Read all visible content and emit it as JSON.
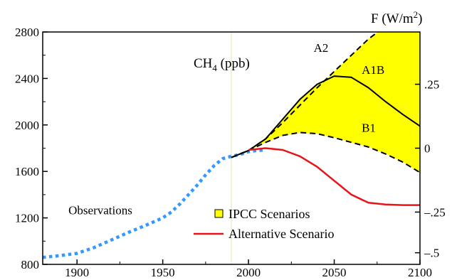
{
  "chart_data": {
    "type": "line",
    "title": "CH",
    "title_sub": "4",
    "title_unit": " (ppb)",
    "right_axis_title": "F (W/m",
    "right_axis_title_sup": "2",
    "right_axis_title_end": ")",
    "xlim": [
      1880,
      2100
    ],
    "ylim": [
      800,
      2800
    ],
    "x_ticks": [
      "1900",
      "1950",
      "2000",
      "2050",
      "2100"
    ],
    "x_tick_values": [
      1900,
      1950,
      2000,
      2050,
      2100
    ],
    "y_ticks": [
      "800",
      "1200",
      "1600",
      "2000",
      "2400",
      "2800"
    ],
    "y_tick_values": [
      800,
      1200,
      1600,
      2000,
      2400,
      2800
    ],
    "right_ticks": [
      {
        "label": ".25",
        "ch4": 2350
      },
      {
        "label": "0",
        "ch4": 1800
      },
      {
        "label": "-.25",
        "ch4": 1250
      },
      {
        "label": "-.5",
        "ch4": 900
      }
    ],
    "colors": {
      "observations": "#3399ff",
      "alternative": "#e8141a",
      "ipcc_fill": "#ffff00",
      "ipcc_lines": "#000000"
    },
    "series": [
      {
        "name": "Observations",
        "style": "dotted",
        "x": [
          1880,
          1890,
          1900,
          1910,
          1920,
          1930,
          1940,
          1950,
          1955,
          1960,
          1965,
          1970,
          1975,
          1980,
          1985,
          1990,
          1995,
          2000,
          2005,
          2010
        ],
        "y": [
          860,
          875,
          895,
          945,
          1010,
          1075,
          1135,
          1200,
          1250,
          1320,
          1400,
          1480,
          1570,
          1650,
          1710,
          1730,
          1745,
          1770,
          1780,
          1785
        ]
      },
      {
        "name": "A2",
        "style": "dashed",
        "x": [
          1990,
          2000,
          2010,
          2020,
          2030,
          2040,
          2050,
          2060,
          2070,
          2080
        ],
        "y": [
          1720,
          1780,
          1880,
          2020,
          2170,
          2320,
          2460,
          2600,
          2740,
          2850
        ]
      },
      {
        "name": "A1B",
        "style": "solid",
        "x": [
          1990,
          2000,
          2010,
          2020,
          2030,
          2040,
          2050,
          2060,
          2070,
          2080,
          2090,
          2100
        ],
        "y": [
          1720,
          1780,
          1880,
          2050,
          2220,
          2350,
          2420,
          2410,
          2320,
          2200,
          2090,
          1990
        ]
      },
      {
        "name": "B1",
        "style": "dashed",
        "x": [
          1990,
          2000,
          2010,
          2020,
          2030,
          2040,
          2050,
          2060,
          2070,
          2080,
          2090,
          2100
        ],
        "y": [
          1720,
          1780,
          1850,
          1910,
          1935,
          1925,
          1890,
          1850,
          1810,
          1750,
          1680,
          1590
        ]
      },
      {
        "name": "Alternative Scenario",
        "style": "solid",
        "x": [
          2000,
          2010,
          2020,
          2030,
          2040,
          2050,
          2060,
          2070,
          2080,
          2090,
          2100
        ],
        "y": [
          1785,
          1800,
          1785,
          1730,
          1640,
          1520,
          1400,
          1330,
          1315,
          1310,
          1310
        ]
      }
    ],
    "annotations": [
      {
        "text": "A2",
        "x": 2038,
        "y": 2630
      },
      {
        "text": "A1B",
        "x": 2066,
        "y": 2440
      },
      {
        "text": "B1",
        "x": 2066,
        "y": 1940
      },
      {
        "text": "Observations",
        "x": 1895,
        "y": 1230
      }
    ],
    "legend": {
      "placement": "bottom-center",
      "entries": [
        {
          "label": "IPCC Scenarios",
          "marker": "square",
          "color": "#ffff00"
        },
        {
          "label": "Alternative Scenario",
          "marker": "line",
          "color": "#e8141a"
        }
      ]
    },
    "grid": false
  }
}
